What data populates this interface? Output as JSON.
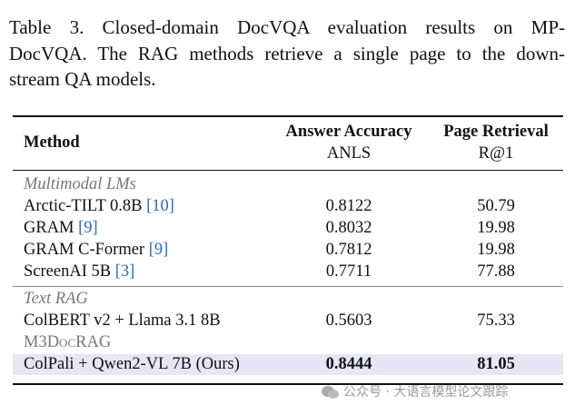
{
  "caption": {
    "lines": [
      "Table 3.  Closed-domain DocVQA evaluation results on MP-",
      "DocVQA. The RAG methods retrieve a single page to the down-",
      "stream QA models."
    ]
  },
  "table": {
    "header": {
      "method": "Method",
      "accuracy": "Answer Accuracy",
      "accuracy_metric": "ANLS",
      "retrieval": "Page Retrieval",
      "retrieval_metric": "R@1"
    },
    "sections": [
      {
        "title": "Multimodal LMs",
        "style": "italic",
        "rows": [
          {
            "method": "Arctic-TILT 0.8B",
            "cite": "[10]",
            "anls": "0.8122",
            "r1": "50.79"
          },
          {
            "method": "GRAM",
            "cite": "[9]",
            "anls": "0.8032",
            "r1": "19.98"
          },
          {
            "method": "GRAM C-Former",
            "cite": "[9]",
            "anls": "0.7812",
            "r1": "19.98"
          },
          {
            "method": "ScreenAI 5B",
            "cite": "[3]",
            "anls": "0.7711",
            "r1": "77.88"
          }
        ]
      },
      {
        "title": "Text RAG",
        "style": "italic",
        "rows": [
          {
            "method": "ColBERT v2 + Llama 3.1 8B",
            "anls": "0.5603",
            "r1": "75.33"
          }
        ]
      },
      {
        "title": "M3DocRAG",
        "style": "small-caps",
        "rows": [
          {
            "method": "ColPali + Qwen2-VL 7B (Ours)",
            "anls": "0.8444",
            "r1": "81.05",
            "highlight": true
          }
        ]
      }
    ]
  },
  "watermark": "公众号 · 大语言模型论文跟踪"
}
